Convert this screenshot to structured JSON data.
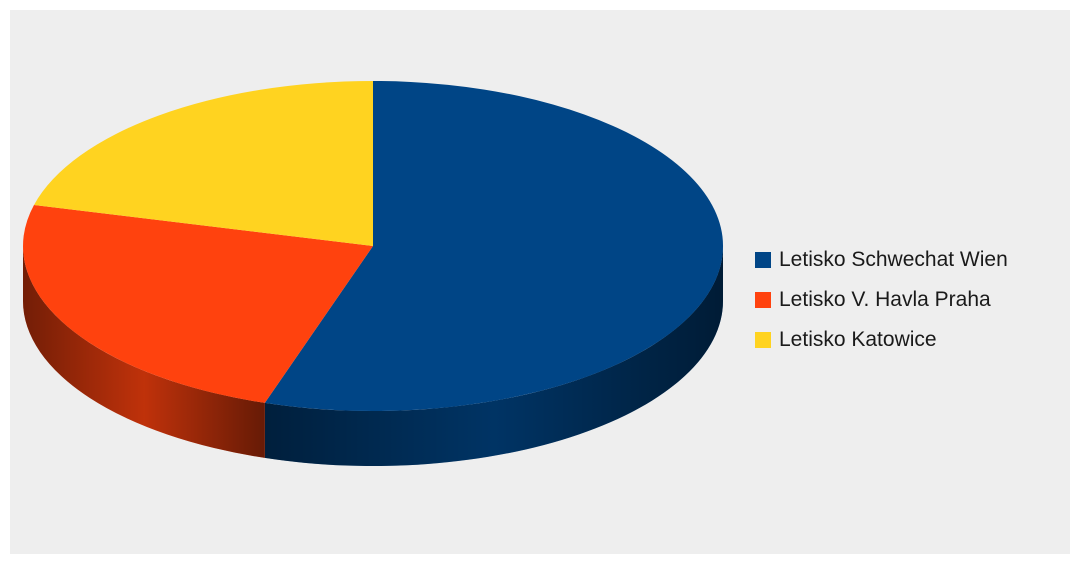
{
  "chart_data": {
    "type": "pie",
    "title": "",
    "three_d": true,
    "legend_position": "right",
    "categories": [
      "Letisko Schwechat Wien",
      "Letisko V. Havla Praha",
      "Letisko Katowice"
    ],
    "values": [
      55,
      24,
      21
    ],
    "value_unit": "percent",
    "colors": [
      "#004586",
      "#ff420e",
      "#ffd320"
    ]
  }
}
